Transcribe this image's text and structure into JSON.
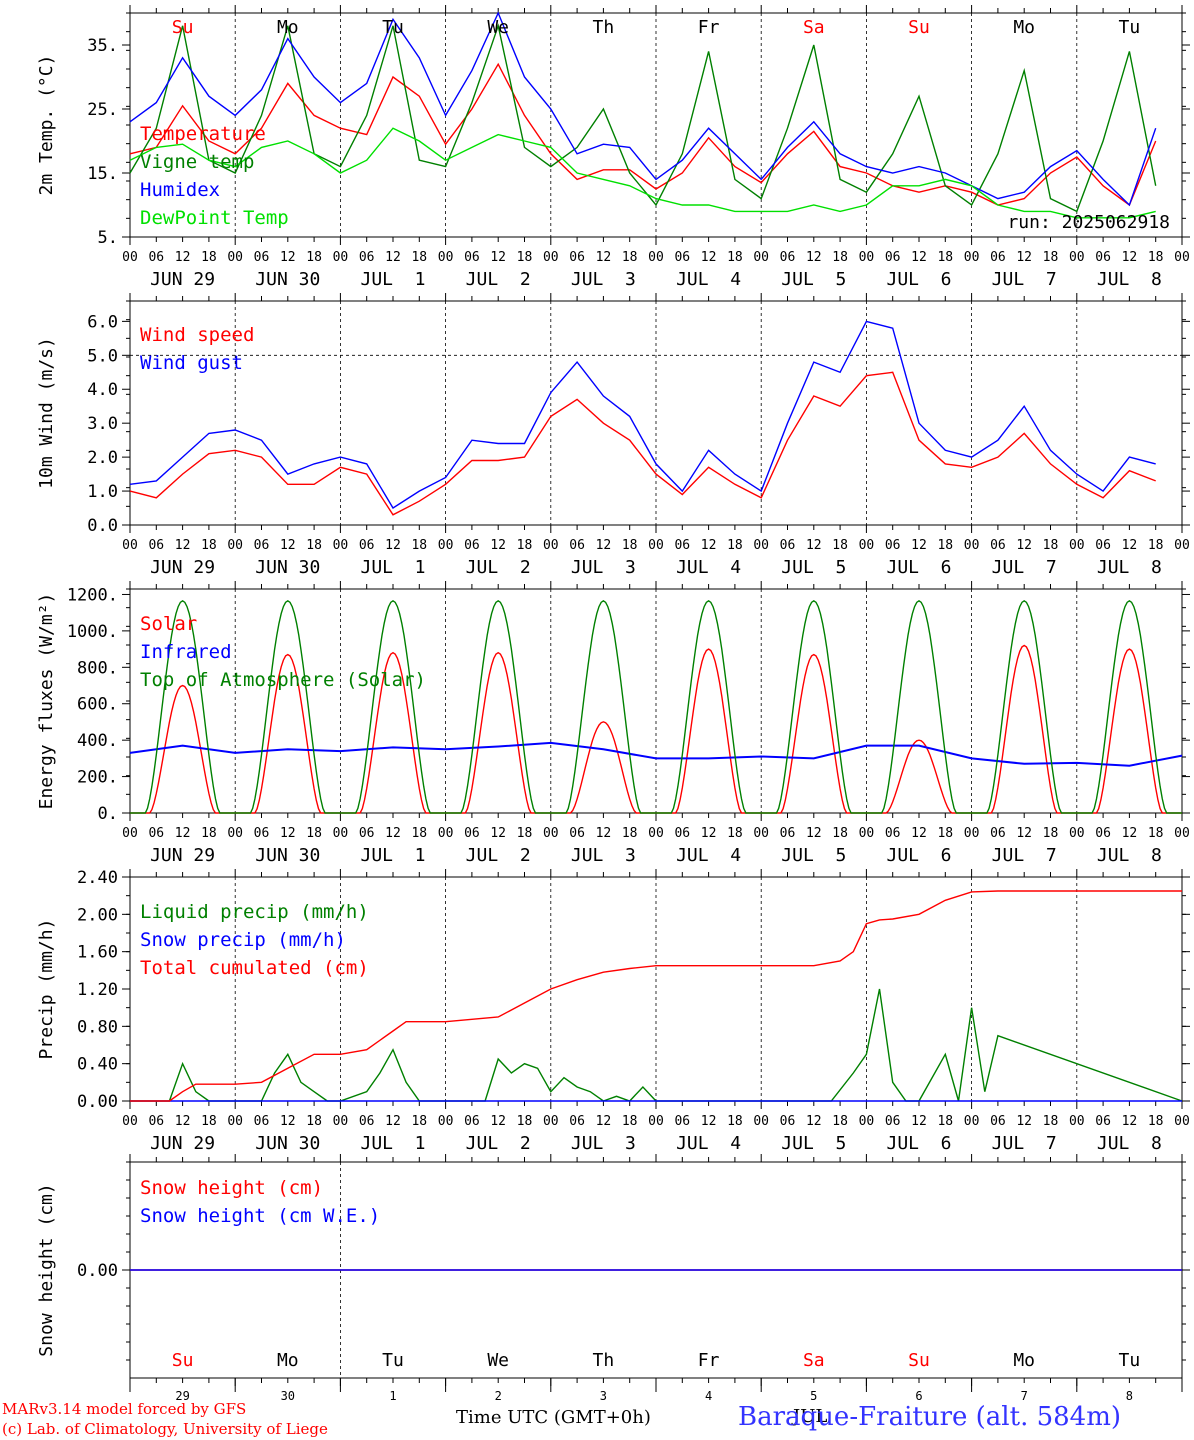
{
  "days": [
    {
      "date": "JUN 29",
      "weekday": "Su",
      "dom": "29",
      "weekend": true
    },
    {
      "date": "JUN 30",
      "weekday": "Mo",
      "dom": "30",
      "weekend": false
    },
    {
      "date": "JUL  1",
      "weekday": "Tu",
      "dom": "1",
      "weekend": false
    },
    {
      "date": "JUL  2",
      "weekday": "We",
      "dom": "2",
      "weekend": false
    },
    {
      "date": "JUL  3",
      "weekday": "Th",
      "dom": "3",
      "weekend": false
    },
    {
      "date": "JUL  4",
      "weekday": "Fr",
      "dom": "4",
      "weekend": false
    },
    {
      "date": "JUL  5",
      "weekday": "Sa",
      "dom": "5",
      "weekend": true
    },
    {
      "date": "JUL  6",
      "weekday": "Su",
      "dom": "6",
      "weekend": true
    },
    {
      "date": "JUL  7",
      "weekday": "Mo",
      "dom": "7",
      "weekend": false
    },
    {
      "date": "JUL  8",
      "weekday": "Tu",
      "dom": "8",
      "weekend": false
    }
  ],
  "hour_ticks": [
    "00",
    "06",
    "12",
    "18"
  ],
  "last_tick": "00",
  "colors": {
    "red": "#ff0000",
    "green": "#008000",
    "blue": "#0000ff",
    "lightgreen": "#00e000",
    "axis": "#000000"
  },
  "chart_data": [
    {
      "type": "line",
      "ylabel": "2m Temp. (°C)",
      "ylim": [
        5,
        40
      ],
      "yticks": [
        5,
        15,
        25,
        35
      ],
      "ytick_labels": [
        "5.",
        "15.",
        "25.",
        "35."
      ],
      "x_unit": "hours since JUN 29 00 UTC",
      "annotation": "run: 2025062918",
      "series": [
        {
          "name": "Temperature",
          "color": "red",
          "x": [
            0,
            6,
            12,
            18,
            24,
            30,
            36,
            42,
            48,
            54,
            60,
            66,
            72,
            78,
            84,
            90,
            96,
            102,
            108,
            114,
            120,
            126,
            132,
            138,
            144,
            150,
            156,
            162,
            168,
            174,
            180,
            186,
            192,
            198,
            204,
            210,
            216,
            222,
            228,
            234
          ],
          "y": [
            18,
            19,
            25.5,
            20,
            18,
            22,
            29,
            24,
            22,
            21,
            30,
            27,
            19.5,
            25,
            32,
            24,
            18,
            14,
            15.5,
            15.5,
            12.5,
            15,
            20.5,
            16,
            13.5,
            18,
            21.5,
            16,
            15,
            13,
            12,
            13,
            12,
            10,
            11,
            15,
            17.5,
            13,
            10,
            20
          ]
        },
        {
          "name": "Vigne temp",
          "color": "green",
          "x": [
            0,
            6,
            12,
            18,
            24,
            30,
            36,
            42,
            48,
            54,
            60,
            66,
            72,
            78,
            84,
            90,
            96,
            102,
            108,
            114,
            120,
            126,
            132,
            138,
            144,
            150,
            156,
            162,
            168,
            174,
            180,
            186,
            192,
            198,
            204,
            210,
            216,
            222,
            228,
            234
          ],
          "y": [
            15,
            22,
            38,
            17,
            15,
            24,
            38,
            18,
            16,
            24,
            38,
            17,
            16,
            26,
            38,
            19,
            16,
            19,
            25,
            15,
            10,
            18,
            34,
            14,
            11,
            22,
            35,
            14,
            12,
            18,
            27,
            13,
            10,
            18,
            31,
            11,
            9,
            20,
            34,
            13
          ]
        },
        {
          "name": "Humidex",
          "color": "blue",
          "x": [
            0,
            6,
            12,
            18,
            24,
            30,
            36,
            42,
            48,
            54,
            60,
            66,
            72,
            78,
            84,
            90,
            96,
            102,
            108,
            114,
            120,
            126,
            132,
            138,
            144,
            150,
            156,
            162,
            168,
            174,
            180,
            186,
            192,
            198,
            204,
            210,
            216,
            222,
            228,
            234
          ],
          "y": [
            23,
            26,
            33,
            27,
            24,
            28,
            36,
            30,
            26,
            29,
            39,
            33,
            24,
            31,
            40,
            30,
            25,
            18,
            19.5,
            19,
            14,
            17,
            22,
            18,
            14,
            19,
            23,
            18,
            16,
            15,
            16,
            15,
            13,
            11,
            12,
            16,
            18.5,
            14,
            10,
            22
          ]
        },
        {
          "name": "DewPoint Temp",
          "color": "lightgreen",
          "x": [
            0,
            6,
            12,
            18,
            24,
            30,
            36,
            42,
            48,
            54,
            60,
            66,
            72,
            78,
            84,
            90,
            96,
            102,
            108,
            114,
            120,
            126,
            132,
            138,
            144,
            150,
            156,
            162,
            168,
            174,
            180,
            186,
            192,
            198,
            204,
            210,
            216,
            222,
            228,
            234
          ],
          "y": [
            17,
            19,
            19.5,
            17,
            16,
            19,
            20,
            18,
            15,
            17,
            22,
            20,
            17,
            19,
            21,
            20,
            19,
            15,
            14,
            13,
            11,
            10,
            10,
            9,
            9,
            9,
            10,
            9,
            10,
            13,
            13,
            14,
            13,
            10,
            9,
            9,
            8,
            8,
            8,
            9
          ]
        }
      ]
    },
    {
      "type": "line",
      "ylabel": "10m Wind (m/s)",
      "ylim": [
        0,
        6.6
      ],
      "yticks": [
        0,
        1,
        2,
        3,
        4,
        5,
        6
      ],
      "ytick_labels": [
        "0.0",
        "1.0",
        "2.0",
        "3.0",
        "4.0",
        "5.0",
        "6.0"
      ],
      "reference_line": 5.0,
      "series": [
        {
          "name": "Wind speed",
          "color": "red",
          "x": [
            0,
            6,
            12,
            18,
            24,
            30,
            36,
            42,
            48,
            54,
            60,
            66,
            72,
            78,
            84,
            90,
            96,
            102,
            108,
            114,
            120,
            126,
            132,
            138,
            144,
            150,
            156,
            162,
            168,
            174,
            180,
            186,
            192,
            198,
            204,
            210,
            216,
            222,
            228,
            234
          ],
          "y": [
            1.0,
            0.8,
            1.5,
            2.1,
            2.2,
            2.0,
            1.2,
            1.2,
            1.7,
            1.5,
            0.3,
            0.7,
            1.2,
            1.9,
            1.9,
            2.0,
            3.2,
            3.7,
            3.0,
            2.5,
            1.5,
            0.9,
            1.7,
            1.2,
            0.8,
            2.5,
            3.8,
            3.5,
            4.4,
            4.5,
            2.5,
            1.8,
            1.7,
            2.0,
            2.7,
            1.8,
            1.2,
            0.8,
            1.6,
            1.3
          ]
        },
        {
          "name": "Wind gust",
          "color": "blue",
          "x": [
            0,
            6,
            12,
            18,
            24,
            30,
            36,
            42,
            48,
            54,
            60,
            66,
            72,
            78,
            84,
            90,
            96,
            102,
            108,
            114,
            120,
            126,
            132,
            138,
            144,
            150,
            156,
            162,
            168,
            174,
            180,
            186,
            192,
            198,
            204,
            210,
            216,
            222,
            228,
            234
          ],
          "y": [
            1.2,
            1.3,
            2.0,
            2.7,
            2.8,
            2.5,
            1.5,
            1.8,
            2.0,
            1.8,
            0.5,
            1.0,
            1.4,
            2.5,
            2.4,
            2.4,
            3.9,
            4.8,
            3.8,
            3.2,
            1.8,
            1.0,
            2.2,
            1.5,
            1.0,
            3.0,
            4.8,
            4.5,
            6.0,
            5.8,
            3.0,
            2.2,
            2.0,
            2.5,
            3.5,
            2.2,
            1.5,
            1.0,
            2.0,
            1.8
          ]
        }
      ]
    },
    {
      "type": "line",
      "ylabel": "Energy fluxes (W/m²)",
      "ylim": [
        0,
        1230
      ],
      "yticks": [
        0,
        200,
        400,
        600,
        800,
        1000,
        1200
      ],
      "ytick_labels": [
        "0.",
        "200.",
        "400.",
        "600.",
        "800.",
        "1000.",
        "1200."
      ],
      "series": [
        {
          "name": "Solar",
          "color": "red",
          "daily_peak": [
            700,
            870,
            880,
            880,
            500,
            900,
            870,
            400,
            920,
            900
          ]
        },
        {
          "name": "Infrared",
          "color": "blue",
          "x": [
            0,
            12,
            24,
            36,
            48,
            60,
            72,
            84,
            96,
            108,
            120,
            132,
            144,
            156,
            168,
            180,
            192,
            204,
            216,
            228,
            240
          ],
          "y": [
            330,
            370,
            330,
            350,
            340,
            360,
            350,
            365,
            385,
            350,
            300,
            300,
            310,
            300,
            370,
            370,
            300,
            270,
            275,
            260,
            315
          ]
        },
        {
          "name": "Top of Atmosphere (Solar)",
          "color": "green",
          "daily_peak": [
            1165,
            1165,
            1165,
            1165,
            1165,
            1165,
            1165,
            1165,
            1165,
            1165
          ]
        }
      ]
    },
    {
      "type": "line",
      "ylabel": "Precip (mm/h)",
      "ylim": [
        0,
        2.4
      ],
      "yticks": [
        0,
        0.4,
        0.8,
        1.2,
        1.6,
        2.0,
        2.4
      ],
      "ytick_labels": [
        "0.00",
        "0.40",
        "0.80",
        "1.20",
        "1.60",
        "2.00",
        "2.40"
      ],
      "series": [
        {
          "name": "Liquid precip (mm/h)",
          "color": "green",
          "x": [
            0,
            9,
            12,
            15,
            18,
            30,
            33,
            36,
            39,
            42,
            45,
            48,
            54,
            57,
            60,
            63,
            66,
            72,
            81,
            84,
            87,
            90,
            93,
            96,
            99,
            102,
            105,
            108,
            111,
            114,
            117,
            120,
            160,
            165,
            168,
            171,
            174,
            177,
            180,
            186,
            189,
            192,
            195,
            198,
            240
          ],
          "y": [
            0,
            0,
            0.4,
            0.1,
            0,
            0,
            0.3,
            0.5,
            0.2,
            0.1,
            0,
            0,
            0.1,
            0.3,
            0.55,
            0.2,
            0,
            0,
            0,
            0.45,
            0.3,
            0.4,
            0.35,
            0.1,
            0.25,
            0.15,
            0.1,
            0,
            0.05,
            0,
            0.15,
            0,
            0,
            0.3,
            0.5,
            1.2,
            0.2,
            0,
            0,
            0.5,
            0,
            1.0,
            0.1,
            0.7,
            0
          ]
        },
        {
          "name": "Snow precip (mm/h)",
          "color": "blue",
          "x": [
            0,
            240
          ],
          "y": [
            0,
            0
          ]
        },
        {
          "name": "Total cumulated (cm)",
          "color": "red",
          "x": [
            0,
            9,
            12,
            15,
            24,
            30,
            36,
            42,
            48,
            54,
            60,
            63,
            66,
            72,
            84,
            90,
            96,
            102,
            108,
            114,
            120,
            156,
            162,
            165,
            168,
            171,
            174,
            180,
            186,
            192,
            198,
            240
          ],
          "y": [
            0,
            0,
            0.1,
            0.18,
            0.18,
            0.2,
            0.35,
            0.5,
            0.5,
            0.55,
            0.75,
            0.85,
            0.85,
            0.85,
            0.9,
            1.05,
            1.2,
            1.3,
            1.38,
            1.42,
            1.45,
            1.45,
            1.5,
            1.6,
            1.9,
            1.94,
            1.95,
            2.0,
            2.15,
            2.24,
            2.25,
            2.25
          ]
        }
      ]
    },
    {
      "type": "line",
      "ylabel": "Snow height (cm)",
      "ylim": [
        -1,
        1
      ],
      "yticks": [
        0
      ],
      "ytick_labels": [
        "0.00"
      ],
      "series": [
        {
          "name": "Snow height (cm)",
          "color": "red",
          "x": [
            0,
            240
          ],
          "y": [
            0,
            0
          ]
        },
        {
          "name": "Snow height (cm W.E.)",
          "color": "blue",
          "x": [
            0,
            240
          ],
          "y": [
            0,
            0
          ]
        }
      ]
    }
  ],
  "footer": {
    "credit_line1": "MARv3.14 model forced by GFS",
    "credit_line2": "(c) Lab. of Climatology, University of Liege",
    "xaxis_label": "Time UTC (GMT+0h)",
    "month_overlay": "JUL",
    "station": "Baraque-Fraiture (alt. 584m)"
  }
}
